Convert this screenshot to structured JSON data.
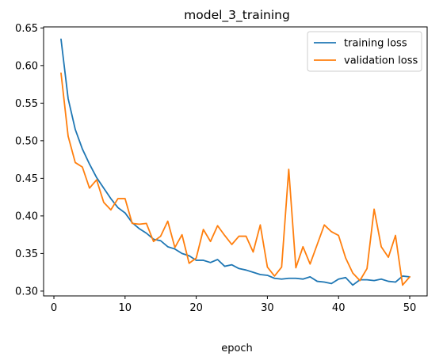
{
  "chart_data": {
    "type": "line",
    "title": "model_3_training",
    "xlabel": "epoch",
    "ylabel": "",
    "xlim": [
      -1.45,
      52.45
    ],
    "ylim": [
      0.2936,
      0.6514
    ],
    "xticks": [
      0,
      10,
      20,
      30,
      40,
      50
    ],
    "yticks": [
      0.3,
      0.35,
      0.4,
      0.45,
      0.5,
      0.55,
      0.6,
      0.65
    ],
    "ytick_labels": [
      "0.30",
      "0.35",
      "0.40",
      "0.45",
      "0.50",
      "0.55",
      "0.60",
      "0.65"
    ],
    "grid": false,
    "legend_position": "top-right",
    "x": [
      1,
      2,
      3,
      4,
      5,
      6,
      7,
      8,
      9,
      10,
      11,
      12,
      13,
      14,
      15,
      16,
      17,
      18,
      19,
      20,
      21,
      22,
      23,
      24,
      25,
      26,
      27,
      28,
      29,
      30,
      31,
      32,
      33,
      34,
      35,
      36,
      37,
      38,
      39,
      40,
      41,
      42,
      43,
      44,
      45,
      46,
      47,
      48,
      49,
      50
    ],
    "series": [
      {
        "name": "training loss",
        "color": "#1f77b4",
        "values": [
          0.635,
          0.556,
          0.515,
          0.489,
          0.469,
          0.451,
          0.437,
          0.423,
          0.411,
          0.404,
          0.391,
          0.383,
          0.377,
          0.369,
          0.367,
          0.359,
          0.356,
          0.35,
          0.347,
          0.341,
          0.341,
          0.338,
          0.342,
          0.333,
          0.335,
          0.33,
          0.328,
          0.325,
          0.322,
          0.321,
          0.317,
          0.316,
          0.317,
          0.317,
          0.316,
          0.319,
          0.313,
          0.312,
          0.31,
          0.316,
          0.318,
          0.308,
          0.315,
          0.315,
          0.314,
          0.316,
          0.313,
          0.312,
          0.32,
          0.319
        ]
      },
      {
        "name": "validation loss",
        "color": "#ff7f0e",
        "values": [
          0.59,
          0.506,
          0.471,
          0.465,
          0.437,
          0.448,
          0.418,
          0.408,
          0.423,
          0.423,
          0.39,
          0.389,
          0.39,
          0.366,
          0.373,
          0.393,
          0.358,
          0.375,
          0.337,
          0.344,
          0.382,
          0.366,
          0.387,
          0.374,
          0.362,
          0.373,
          0.373,
          0.352,
          0.388,
          0.332,
          0.32,
          0.332,
          0.462,
          0.331,
          0.359,
          0.336,
          0.362,
          0.388,
          0.379,
          0.374,
          0.344,
          0.324,
          0.314,
          0.33,
          0.409,
          0.359,
          0.345,
          0.374,
          0.308,
          0.319
        ]
      }
    ]
  }
}
